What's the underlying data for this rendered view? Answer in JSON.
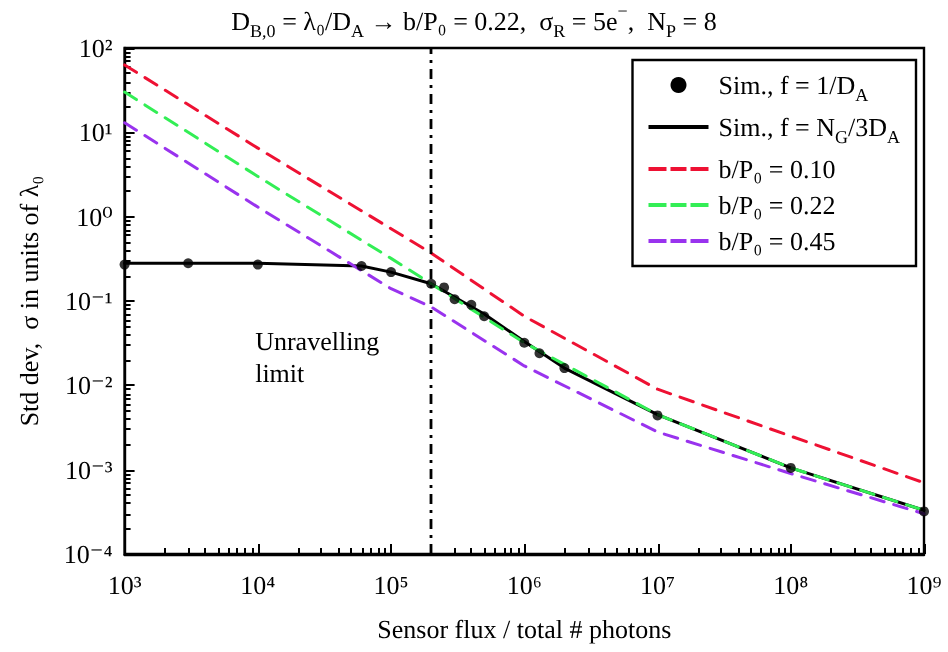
{
  "chart_data": {
    "type": "line",
    "title": "D$_{B,0}$ = λ₀/D$_{A}$ → b/P₀ = 0.22,  σ$_{R}$ = 5e$^{−}$,  N$_{P}$ = 8",
    "xlabel": "Sensor flux / total # photons",
    "ylabel": "Std dev,  σ in units of λ₀",
    "log": "xy",
    "xlim": [
      1000,
      1000000000
    ],
    "ylim": [
      0.0001,
      100
    ],
    "xticks": [
      {
        "value": 1000,
        "label": "10³"
      },
      {
        "value": 10000,
        "label": "10⁴"
      },
      {
        "value": 100000,
        "label": "10⁵"
      },
      {
        "value": 1000000,
        "label": "10⁶"
      },
      {
        "value": 10000000,
        "label": "10⁷"
      },
      {
        "value": 100000000,
        "label": "10⁸"
      },
      {
        "value": 1000000000,
        "label": "10⁹"
      }
    ],
    "yticks": [
      {
        "value": 0.0001,
        "label": "10⁻⁴"
      },
      {
        "value": 0.001,
        "label": "10⁻³"
      },
      {
        "value": 0.01,
        "label": "10⁻²"
      },
      {
        "value": 0.1,
        "label": "10⁻¹"
      },
      {
        "value": 1,
        "label": "10⁰"
      },
      {
        "value": 10,
        "label": "10¹"
      },
      {
        "value": 100,
        "label": "10²"
      }
    ],
    "grid": false,
    "legend": "top right",
    "series": [
      {
        "name": "Sim., f = 1/D$_{A}$",
        "type": "scatter",
        "marker": "circle",
        "color": "#000000",
        "x": [
          1000,
          3000,
          10000,
          60000,
          100000,
          200000,
          250000,
          300000,
          400000,
          500000,
          1000000,
          1300000,
          2000000,
          10000000,
          100000000,
          1000000000
        ],
        "values": [
          0.27,
          0.28,
          0.27,
          0.26,
          0.22,
          0.16,
          0.145,
          0.105,
          0.09,
          0.066,
          0.032,
          0.024,
          0.016,
          0.0044,
          0.00105,
          0.00032
        ]
      },
      {
        "name": "Sim., f = N$_{G}$/3D$_{A}$",
        "marker": "none",
        "line_style": "solid",
        "color": "#000000",
        "x": [
          1000,
          10000,
          60000,
          100000,
          200000,
          500000,
          1000000,
          2000000,
          10000000,
          100000000,
          1000000000
        ],
        "values": [
          0.28,
          0.28,
          0.26,
          0.22,
          0.16,
          0.07,
          0.033,
          0.016,
          0.0045,
          0.00105,
          0.00033
        ]
      },
      {
        "name": "b/P₀ = 0.10",
        "marker": "none",
        "line_style": "dashed",
        "color": "#ee1133",
        "x": [
          1000,
          10000,
          100000,
          200000,
          1000000,
          10000000,
          100000000,
          1000000000
        ],
        "values": [
          63,
          6.5,
          0.72,
          0.37,
          0.066,
          0.009,
          0.0025,
          0.0007
        ]
      },
      {
        "name": "b/P₀ = 0.22",
        "marker": "none",
        "line_style": "dashed",
        "color": "#33ee55",
        "x": [
          1000,
          10000,
          100000,
          1000000,
          10000000,
          100000000,
          1000000000
        ],
        "values": [
          30,
          3.0,
          0.32,
          0.032,
          0.0045,
          0.00105,
          0.00033
        ]
      },
      {
        "name": "b/P₀ = 0.45",
        "marker": "none",
        "line_style": "dashed",
        "color": "#9933ee",
        "x": [
          1000,
          10000,
          100000,
          200000,
          1000000,
          10000000,
          100000000,
          1000000000
        ],
        "values": [
          13,
          1.3,
          0.14,
          0.085,
          0.017,
          0.0028,
          0.0009,
          0.0003
        ]
      }
    ],
    "ref_lines": [
      {
        "axis": "x",
        "value": 200000,
        "label": "Unravelling\nlimit",
        "color": "#000000",
        "line_style": "dashdot"
      }
    ]
  }
}
